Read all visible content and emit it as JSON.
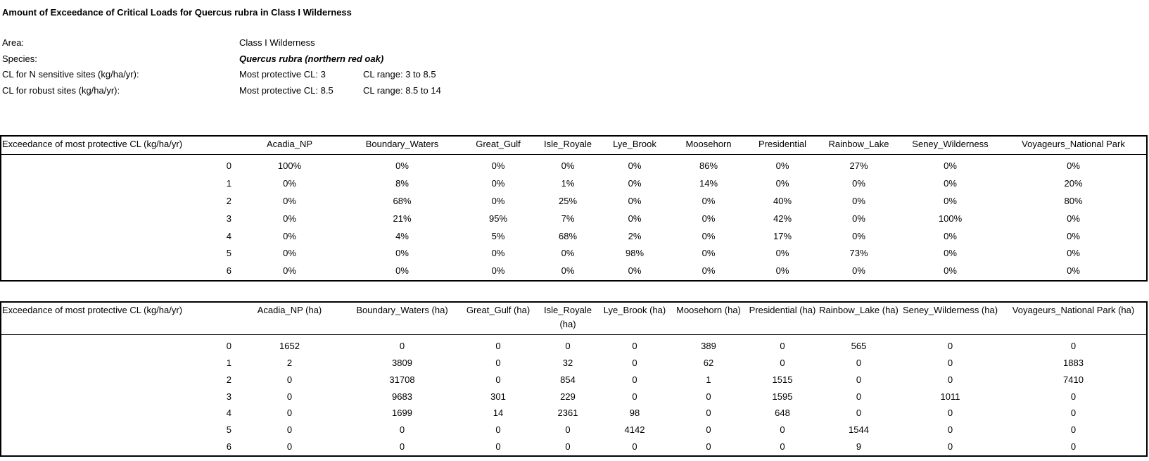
{
  "title": "Amount  of Exceedance of Critical  Loads for Quercus rubra  in Class  I Wilderness",
  "meta": {
    "area_label": "Area:",
    "area_value": "Class I Wilderness",
    "species_label": "Species:",
    "species_value": "Quercus rubra (northern red oak)",
    "sensitive_label": "CL for N sensitive sites (kg/ha/yr):",
    "sensitive_cl": "Most protective CL: 3",
    "sensitive_range": "CL range: 3 to 8.5",
    "robust_label": "CL for robust sites (kg/ha/yr):",
    "robust_cl": "Most protective CL: 8.5",
    "robust_range": "CL range: 8.5 to 14"
  },
  "table_percent": {
    "headers": [
      "Exceedance  of most protective  CL (kg/ha/yr)",
      "Acadia_NP",
      "Boundary_Waters",
      "Great_Gulf",
      "Isle_Royale",
      "Lye_Brook",
      "Moosehorn",
      "Presidential",
      "Rainbow_Lake",
      "Seney_Wilderness",
      "Voyageurs_National Park"
    ],
    "rows": [
      [
        "0",
        "100%",
        "0%",
        "0%",
        "0%",
        "0%",
        "86%",
        "0%",
        "27%",
        "0%",
        "0%"
      ],
      [
        "1",
        "0%",
        "8%",
        "0%",
        "1%",
        "0%",
        "14%",
        "0%",
        "0%",
        "0%",
        "20%"
      ],
      [
        "2",
        "0%",
        "68%",
        "0%",
        "25%",
        "0%",
        "0%",
        "40%",
        "0%",
        "0%",
        "80%"
      ],
      [
        "3",
        "0%",
        "21%",
        "95%",
        "7%",
        "0%",
        "0%",
        "42%",
        "0%",
        "100%",
        "0%"
      ],
      [
        "4",
        "0%",
        "4%",
        "5%",
        "68%",
        "2%",
        "0%",
        "17%",
        "0%",
        "0%",
        "0%"
      ],
      [
        "5",
        "0%",
        "0%",
        "0%",
        "0%",
        "98%",
        "0%",
        "0%",
        "73%",
        "0%",
        "0%"
      ],
      [
        "6",
        "0%",
        "0%",
        "0%",
        "0%",
        "0%",
        "0%",
        "0%",
        "0%",
        "0%",
        "0%"
      ]
    ]
  },
  "table_ha": {
    "headers": [
      "Exceedance  of most protective  CL (kg/ha/yr)",
      "Acadia_NP  (ha)",
      "Boundary_Waters  (ha)",
      "Great_Gulf  (ha)",
      "Isle_Royale (ha)",
      "Lye_Brook  (ha)",
      "Moosehorn (ha)",
      "Presidential (ha)",
      "Rainbow_Lake (ha)",
      "Seney_Wilderness (ha)",
      "Voyageurs_National Park (ha)"
    ],
    "rows": [
      [
        "0",
        "1652",
        "0",
        "0",
        "0",
        "0",
        "389",
        "0",
        "565",
        "0",
        "0"
      ],
      [
        "1",
        "2",
        "3809",
        "0",
        "32",
        "0",
        "62",
        "0",
        "0",
        "0",
        "1883"
      ],
      [
        "2",
        "0",
        "31708",
        "0",
        "854",
        "0",
        "1",
        "1515",
        "0",
        "0",
        "7410"
      ],
      [
        "3",
        "0",
        "9683",
        "301",
        "229",
        "0",
        "0",
        "1595",
        "0",
        "1011",
        "0"
      ],
      [
        "4",
        "0",
        "1699",
        "14",
        "2361",
        "98",
        "0",
        "648",
        "0",
        "0",
        "0"
      ],
      [
        "5",
        "0",
        "0",
        "0",
        "0",
        "4142",
        "0",
        "0",
        "1544",
        "0",
        "0"
      ],
      [
        "6",
        "0",
        "0",
        "0",
        "0",
        "0",
        "0",
        "0",
        "9",
        "0",
        "0"
      ]
    ]
  }
}
